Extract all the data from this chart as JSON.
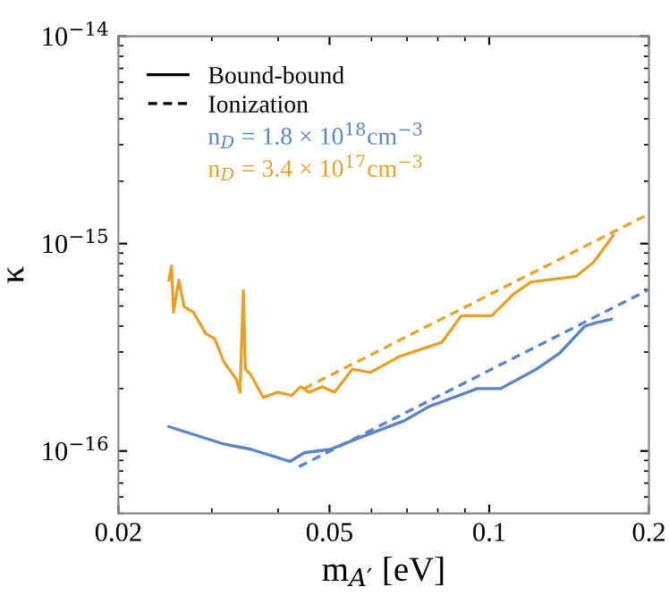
{
  "chart_data": {
    "type": "line",
    "xlabel": "m$_{A′}$ [eV]",
    "ylabel": "κ",
    "log": "xy",
    "xlim": [
      0.02,
      0.2
    ],
    "ylim": [
      5e-17,
      1e-14
    ],
    "xticks": [
      0.02,
      0.05,
      0.1,
      0.2
    ],
    "yticks": [
      {
        "value": 1e-16,
        "label": "10$^{−16}$"
      },
      {
        "value": 1e-15,
        "label": "10$^{−15}$"
      },
      {
        "value": 1e-14,
        "label": "10$^{−14}$"
      }
    ],
    "annotations": [
      "Bound-bound",
      "Ionization"
    ],
    "legend": "top left",
    "grid": false,
    "series": [
      {
        "name": "n$_{D}$ = 1.8 × 10$^{18}$cm$^{−3}$",
        "color": "#5b84c4",
        "line_style": "solid",
        "x": [
          0.0249,
          0.0316,
          0.0355,
          0.0421,
          0.0448,
          0.0503,
          0.0565,
          0.0692,
          0.0771,
          0.095,
          0.1051,
          0.1227,
          0.1357,
          0.1513,
          0.1585,
          0.17
        ],
        "values": [
          1.31e-16,
          1.08e-16,
          1.02e-16,
          8.9e-17,
          9.8e-17,
          1.02e-16,
          1.15e-16,
          1.4e-16,
          1.64e-16,
          2e-16,
          2e-16,
          2.48e-16,
          2.96e-16,
          3.99e-16,
          4.15e-16,
          4.32e-16
        ]
      },
      {
        "name": "n$_{D}$ = 3.4 × 10$^{17}$cm$^{−3}$",
        "color": "#e8a02a",
        "line_style": "solid",
        "x": [
          0.0249,
          0.0252,
          0.0254,
          0.026,
          0.0266,
          0.0277,
          0.0292,
          0.0304,
          0.0316,
          0.0334,
          0.0339,
          0.0344,
          0.0347,
          0.0355,
          0.0375,
          0.0399,
          0.0424,
          0.0441,
          0.0458,
          0.0484,
          0.0511,
          0.0552,
          0.0597,
          0.0676,
          0.0814,
          0.0886,
          0.1011,
          0.111,
          0.1199,
          0.1456,
          0.1573,
          0.1713
        ],
        "values": [
          6.67e-16,
          7.81e-16,
          4.67e-16,
          6.67e-16,
          4.95e-16,
          4.67e-16,
          3.69e-16,
          3.47e-16,
          2.69e-16,
          2.21e-16,
          1.92e-16,
          5.93e-16,
          2.48e-16,
          2.34e-16,
          1.81e-16,
          1.92e-16,
          1.85e-16,
          2.04e-16,
          1.92e-16,
          2.04e-16,
          1.92e-16,
          2.48e-16,
          2.39e-16,
          2.85e-16,
          3.34e-16,
          4.49e-16,
          4.49e-16,
          5.69e-16,
          6.53e-16,
          6.94e-16,
          8.13e-16,
          1.094e-15
        ]
      },
      {
        "color": "#5b84c4",
        "line_style": "dashed",
        "x": [
          0.0438,
          0.2
        ],
        "values": [
          8.4e-17,
          6e-16
        ]
      },
      {
        "color": "#e8a02a",
        "line_style": "dashed",
        "x": [
          0.0448,
          0.2
        ],
        "values": [
          2e-16,
          1.39e-15
        ]
      }
    ]
  }
}
